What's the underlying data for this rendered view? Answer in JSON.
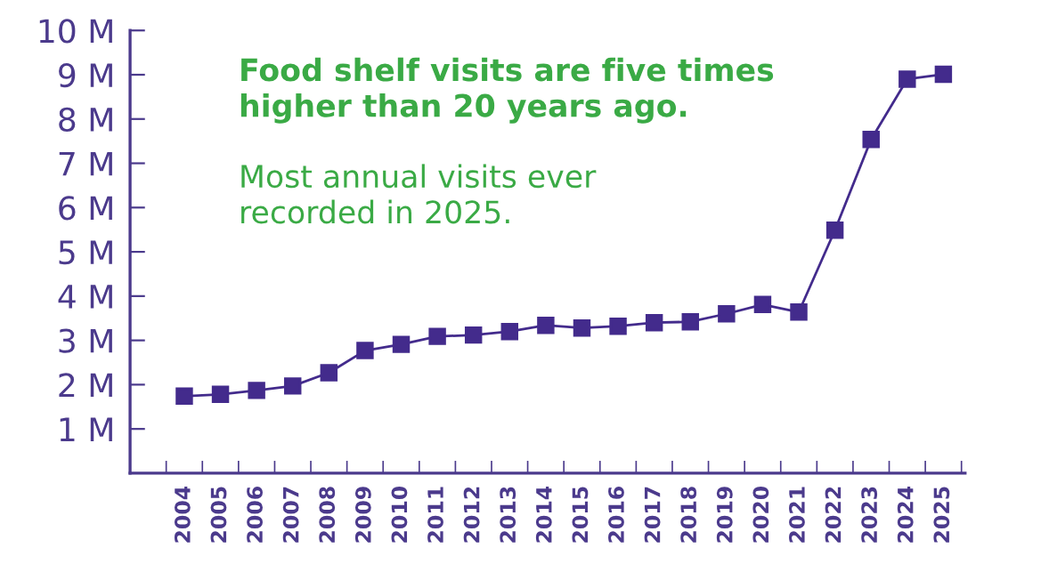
{
  "chart_data": {
    "type": "line",
    "categories": [
      "2004",
      "2005",
      "2006",
      "2007",
      "2008",
      "2009",
      "2010",
      "2011",
      "2012",
      "2013",
      "2014",
      "2015",
      "2016",
      "2017",
      "2018",
      "2019",
      "2020",
      "2021",
      "2022",
      "2023",
      "2024",
      "2025"
    ],
    "series": [
      {
        "color": "#432b8c",
        "values": [
          1.74,
          1.78,
          1.87,
          1.97,
          2.27,
          2.77,
          2.91,
          3.09,
          3.12,
          3.2,
          3.34,
          3.28,
          3.32,
          3.4,
          3.42,
          3.6,
          3.81,
          3.64,
          5.49,
          7.54,
          8.9,
          9.01
        ]
      }
    ],
    "ylim": [
      0,
      10
    ],
    "yticks": [
      {
        "value": 1,
        "label": "1 M"
      },
      {
        "value": 2,
        "label": "2 M"
      },
      {
        "value": 3,
        "label": "3 M"
      },
      {
        "value": 4,
        "label": "4 M"
      },
      {
        "value": 5,
        "label": "5 M"
      },
      {
        "value": 6,
        "label": "6 M"
      },
      {
        "value": 7,
        "label": "7 M"
      },
      {
        "value": 8,
        "label": "8 M"
      },
      {
        "value": 9,
        "label": "9 M"
      },
      {
        "value": 10,
        "label": "10 M"
      }
    ],
    "marker": "square",
    "line_style": "solid",
    "grid": false,
    "legend": false,
    "annotations": [
      "Food shelf visits are five times\nhigher than 20 years ago.",
      "Most annual visits ever\nrecorded in 2025."
    ]
  }
}
